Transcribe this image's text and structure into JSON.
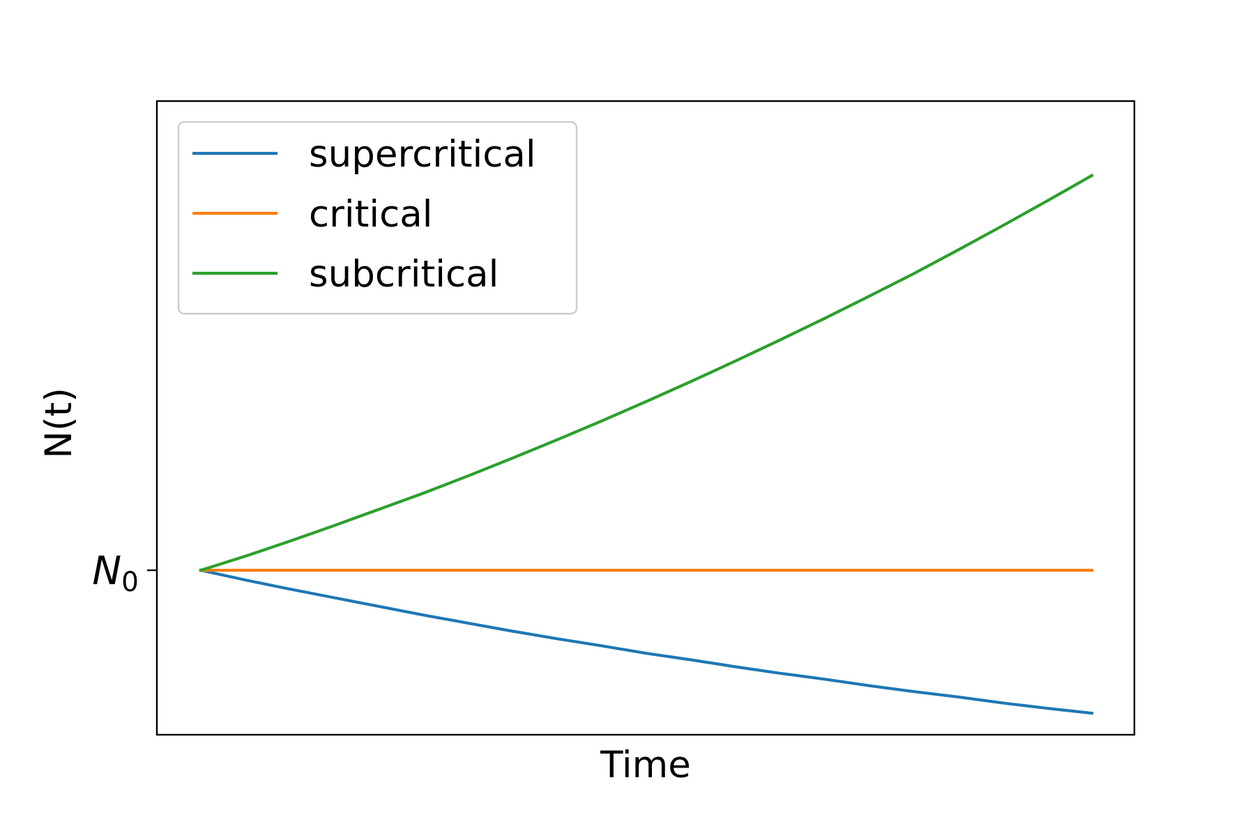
{
  "chart_data": {
    "type": "line",
    "title": "",
    "xlabel": "Time",
    "ylabel": "N(t)",
    "y_tick_labels": [
      "N0"
    ],
    "x_tick_labels": [],
    "xlim": [
      0,
      1
    ],
    "ylim": [
      0.695,
      1.87
    ],
    "grid": false,
    "legend_position": "top-left",
    "x": [
      0.0,
      0.05,
      0.1,
      0.15,
      0.2,
      0.25,
      0.3,
      0.35,
      0.4,
      0.45,
      0.5,
      0.55,
      0.6,
      0.65,
      0.7,
      0.75,
      0.8,
      0.85,
      0.9,
      0.95,
      1.0
    ],
    "series": [
      {
        "name": "supercritical",
        "color": "#1f77b4",
        "values": [
          1.0,
          0.982,
          0.965,
          0.949,
          0.933,
          0.917,
          0.902,
          0.887,
          0.873,
          0.86,
          0.846,
          0.834,
          0.821,
          0.809,
          0.798,
          0.786,
          0.775,
          0.765,
          0.754,
          0.744,
          0.735
        ]
      },
      {
        "name": "critical",
        "color": "#ff7f0e",
        "values": [
          1.0,
          1.0,
          1.0,
          1.0,
          1.0,
          1.0,
          1.0,
          1.0,
          1.0,
          1.0,
          1.0,
          1.0,
          1.0,
          1.0,
          1.0,
          1.0,
          1.0,
          1.0,
          1.0,
          1.0,
          1.0
        ]
      },
      {
        "name": "subcritical",
        "color": "#2ca02c",
        "values": [
          1.0,
          1.026,
          1.054,
          1.083,
          1.113,
          1.143,
          1.175,
          1.208,
          1.242,
          1.277,
          1.313,
          1.35,
          1.388,
          1.427,
          1.467,
          1.508,
          1.55,
          1.594,
          1.639,
          1.685,
          1.732
        ]
      }
    ]
  }
}
